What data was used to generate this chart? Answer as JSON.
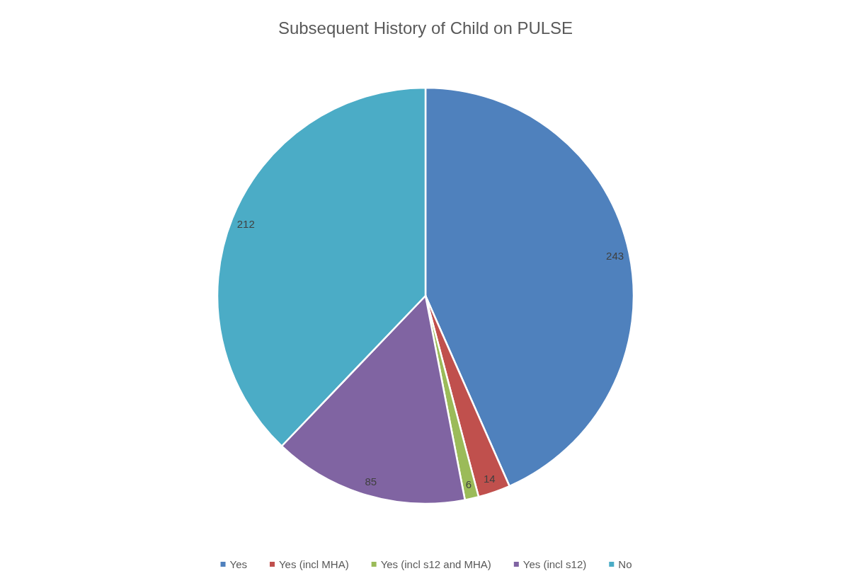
{
  "chart_data": {
    "type": "pie",
    "title": "Subsequent History of Child on PULSE",
    "categories": [
      "Yes",
      "Yes (incl MHA)",
      "Yes (incl s12 and MHA)",
      "Yes (incl s12)",
      "No"
    ],
    "values": [
      243,
      14,
      6,
      85,
      212
    ],
    "colors": [
      "#4f81bd",
      "#c0504d",
      "#9bbb59",
      "#8064a2",
      "#4bacc6"
    ],
    "data_labels": true,
    "legend": "bottom"
  }
}
